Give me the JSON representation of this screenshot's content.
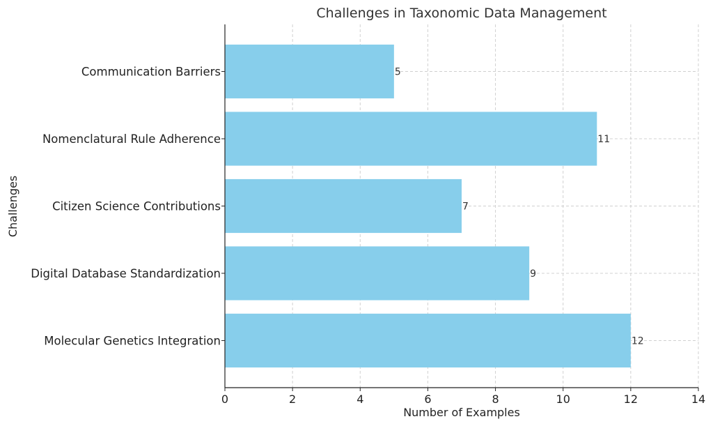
{
  "chart_data": {
    "type": "bar",
    "orientation": "horizontal",
    "title": "Challenges in Taxonomic Data Management",
    "xlabel": "Number of Examples",
    "ylabel": "Challenges",
    "categories": [
      "Molecular Genetics Integration",
      "Digital Database Standardization",
      "Citizen Science Contributions",
      "Nomenclatural Rule Adherence",
      "Communication Barriers"
    ],
    "values": [
      12,
      9,
      7,
      11,
      5
    ],
    "data_labels": [
      "12",
      "9",
      "7",
      "11",
      "5"
    ],
    "xlim": [
      0,
      14
    ],
    "xticks": [
      "0",
      "2",
      "4",
      "6",
      "8",
      "10",
      "12",
      "14"
    ],
    "grid": true,
    "bar_color": "#87CEEB"
  }
}
